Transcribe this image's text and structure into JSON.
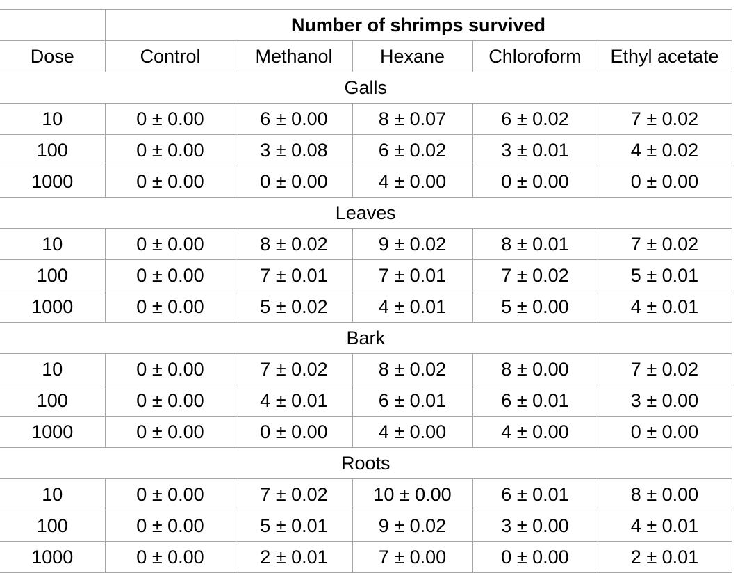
{
  "table": {
    "title": "Number of shrimps survived",
    "headers": [
      "Dose",
      "Control",
      "Methanol",
      "Hexane",
      "Chloroform",
      "Ethyl acetate"
    ],
    "sections": [
      {
        "label": "Galls",
        "rows": [
          [
            "10",
            "0 ± 0.00",
            "6 ± 0.00",
            "8 ± 0.07",
            "6 ± 0.02",
            "7 ± 0.02"
          ],
          [
            "100",
            "0 ± 0.00",
            "3 ± 0.08",
            "6 ± 0.02",
            "3 ± 0.01",
            "4 ± 0.02"
          ],
          [
            "1000",
            "0 ± 0.00",
            "0 ± 0.00",
            "4 ± 0.00",
            "0 ± 0.00",
            "0 ± 0.00"
          ]
        ]
      },
      {
        "label": "Leaves",
        "rows": [
          [
            "10",
            "0 ± 0.00",
            "8 ± 0.02",
            "9 ± 0.02",
            "8 ± 0.01",
            "7 ± 0.02"
          ],
          [
            "100",
            "0 ± 0.00",
            "7 ± 0.01",
            "7 ± 0.01",
            "7 ± 0.02",
            "5 ± 0.01"
          ],
          [
            "1000",
            "0 ± 0.00",
            "5 ± 0.02",
            "4 ± 0.01",
            "5 ± 0.00",
            "4 ± 0.01"
          ]
        ]
      },
      {
        "label": "Bark",
        "rows": [
          [
            "10",
            "0 ± 0.00",
            "7 ± 0.02",
            "8 ± 0.02",
            "8 ± 0.00",
            "7 ± 0.02"
          ],
          [
            "100",
            "0 ± 0.00",
            "4 ± 0.01",
            "6 ± 0.01",
            "6 ± 0.01",
            "3 ± 0.00"
          ],
          [
            "1000",
            "0 ± 0.00",
            "0 ± 0.00",
            "4 ± 0.00",
            "4 ± 0.00",
            "0 ± 0.00"
          ]
        ]
      },
      {
        "label": "Roots",
        "rows": [
          [
            "10",
            "0 ± 0.00",
            "7 ± 0.02",
            "10 ± 0.00",
            "6 ± 0.01",
            "8 ± 0.00"
          ],
          [
            "100",
            "0 ± 0.00",
            "5 ± 0.01",
            "9 ± 0.02",
            "3 ± 0.00",
            "4 ± 0.01"
          ],
          [
            "1000",
            "0 ± 0.00",
            "2 ± 0.01",
            "7 ± 0.00",
            "0 ± 0.00",
            "2 ± 0.01"
          ]
        ]
      }
    ]
  }
}
